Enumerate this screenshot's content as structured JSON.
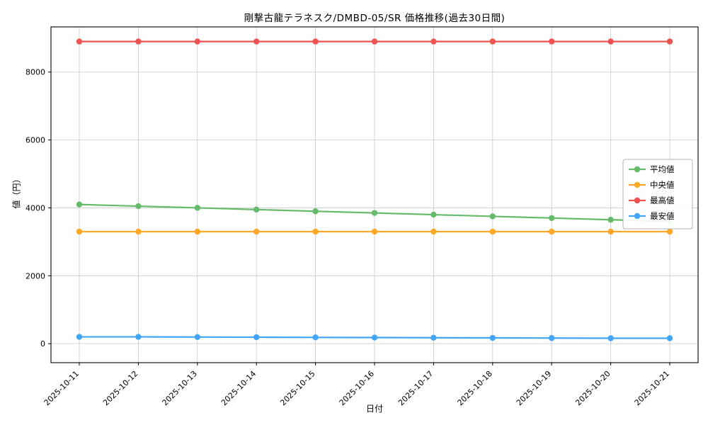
{
  "chart_data": {
    "type": "line",
    "title": "剛撃古龍テラネスク/DMBD-05/SR 価格推移(過去30日間)",
    "xlabel": "日付",
    "ylabel": "値（円）",
    "categories": [
      "2025-10-11",
      "2025-10-12",
      "2025-10-13",
      "2025-10-14",
      "2025-10-15",
      "2025-10-16",
      "2025-10-17",
      "2025-10-18",
      "2025-10-19",
      "2025-10-20",
      "2025-10-21"
    ],
    "series": [
      {
        "name": "平均値",
        "color": "#66bb6a",
        "values": [
          4100,
          4050,
          4000,
          3950,
          3900,
          3850,
          3800,
          3750,
          3700,
          3650,
          3600
        ]
      },
      {
        "name": "中央値",
        "color": "#ffa726",
        "values": [
          3300,
          3300,
          3300,
          3300,
          3300,
          3300,
          3300,
          3300,
          3300,
          3300,
          3300
        ]
      },
      {
        "name": "最高値",
        "color": "#ef5350",
        "values": [
          8900,
          8900,
          8900,
          8900,
          8900,
          8900,
          8900,
          8900,
          8900,
          8900,
          8900
        ]
      },
      {
        "name": "最安値",
        "color": "#42a5f5",
        "values": [
          200,
          200,
          195,
          190,
          185,
          180,
          175,
          170,
          165,
          160,
          160
        ]
      }
    ],
    "yticks": [
      0,
      2000,
      4000,
      6000,
      8000
    ],
    "ylim": [
      -560,
      9330
    ],
    "grid": true,
    "legend_position": "right"
  }
}
